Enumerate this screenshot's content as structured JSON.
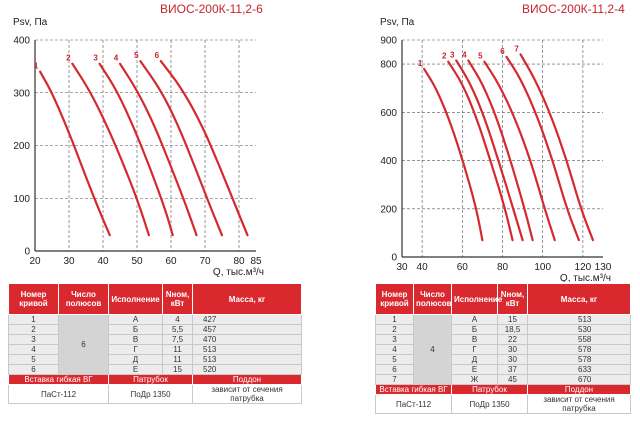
{
  "panels": [
    {
      "title": "ВИОС-200К-11,2-6",
      "chart_data": {
        "type": "line",
        "ylabel": "Psv, Па",
        "xlabel": "Q, тыс.м³/ч",
        "xlim": [
          20,
          85
        ],
        "ylim": [
          0,
          400
        ],
        "x_ticks": [
          20,
          30,
          40,
          50,
          60,
          70,
          80,
          85
        ],
        "y_ticks": [
          0,
          100,
          200,
          300,
          400
        ],
        "grid": true,
        "series": [
          {
            "name": "1",
            "x": [
              21.5,
              25,
              30,
              35,
              39,
              42
            ],
            "y": [
              340,
              300,
              225,
              140,
              75,
              30
            ]
          },
          {
            "name": "2",
            "x": [
              31,
              36,
              41,
              46,
              50.5,
              53.5
            ],
            "y": [
              355,
              305,
              240,
              165,
              90,
              30
            ]
          },
          {
            "name": "3",
            "x": [
              39,
              44,
              49,
              54,
              58.5,
              60.5
            ],
            "y": [
              355,
              305,
              235,
              155,
              75,
              30
            ]
          },
          {
            "name": "4",
            "x": [
              45,
              50,
              55,
              60,
              64.5,
              67.5
            ],
            "y": [
              355,
              305,
              240,
              160,
              85,
              30
            ]
          },
          {
            "name": "5",
            "x": [
              51,
              57,
              62,
              67,
              71.5,
              75
            ],
            "y": [
              360,
              305,
              240,
              160,
              85,
              30
            ]
          },
          {
            "name": "6",
            "x": [
              57,
              63,
              69,
              74,
              79,
              82.5
            ],
            "y": [
              360,
              310,
              240,
              165,
              85,
              30
            ]
          }
        ]
      },
      "table": {
        "headers": [
          "Номер кривой",
          "Число полюсов",
          "Исполнение",
          "Nном, кВт",
          "Масса, кг"
        ],
        "poles": "6",
        "rows": [
          {
            "num": "1",
            "exec": "А",
            "power": "4",
            "mass": "427"
          },
          {
            "num": "2",
            "exec": "Б",
            "power": "5,5",
            "mass": "457"
          },
          {
            "num": "3",
            "exec": "В",
            "power": "7,5",
            "mass": "470"
          },
          {
            "num": "4",
            "exec": "Г",
            "power": "11",
            "mass": "513"
          },
          {
            "num": "5",
            "exec": "Д",
            "power": "11",
            "mass": "513"
          },
          {
            "num": "6",
            "exec": "Е",
            "power": "15",
            "mass": "520"
          }
        ],
        "footer_headers": [
          "Вставка гибкая ВГ",
          "Патрубок",
          "Поддон"
        ],
        "footer_values": [
          "ПаСт-112",
          "ПоДр 1350",
          "зависит от сечения патрубка"
        ]
      }
    },
    {
      "title": "ВИОС-200К-11,2-4",
      "chart_data": {
        "type": "line",
        "ylabel": "Psv, Па",
        "xlabel": "Q, тыс.м³/ч",
        "xlim": [
          30,
          130
        ],
        "ylim": [
          0,
          900
        ],
        "x_ticks": [
          30,
          40,
          60,
          80,
          100,
          120,
          130
        ],
        "y_ticks": [
          0,
          200,
          400,
          600,
          800,
          900
        ],
        "grid": true,
        "series": [
          {
            "name": "1",
            "x": [
              41,
              47,
              54,
              61,
              67,
              70
            ],
            "y": [
              780,
              700,
              560,
              380,
              200,
              70
            ]
          },
          {
            "name": "2",
            "x": [
              53,
              60,
              67,
              74,
              81,
              85
            ],
            "y": [
              810,
              720,
              580,
              400,
              210,
              70
            ]
          },
          {
            "name": "3",
            "x": [
              57,
              64,
              71,
              78,
              85,
              90
            ],
            "y": [
              815,
              720,
              580,
              400,
              210,
              70
            ]
          },
          {
            "name": "4",
            "x": [
              63,
              70,
              77,
              84,
              91,
              95
            ],
            "y": [
              815,
              720,
              580,
              400,
              200,
              70
            ]
          },
          {
            "name": "5",
            "x": [
              71,
              78,
              86,
              94,
              101,
              106
            ],
            "y": [
              810,
              720,
              580,
              400,
              200,
              70
            ]
          },
          {
            "name": "6",
            "x": [
              82,
              89,
              97,
              105,
              112,
              118
            ],
            "y": [
              830,
              740,
              590,
              400,
              200,
              70
            ]
          },
          {
            "name": "7",
            "x": [
              89,
              96,
              104,
              112,
              119,
              125
            ],
            "y": [
              840,
              740,
              590,
              400,
              200,
              70
            ]
          }
        ]
      },
      "table": {
        "headers": [
          "Номер кривой",
          "Число полюсов",
          "Исполнение",
          "Nном, кВт",
          "Масса, кг"
        ],
        "poles": "4",
        "rows": [
          {
            "num": "1",
            "exec": "А",
            "power": "15",
            "mass": "513"
          },
          {
            "num": "2",
            "exec": "Б",
            "power": "18,5",
            "mass": "530"
          },
          {
            "num": "3",
            "exec": "В",
            "power": "22",
            "mass": "558"
          },
          {
            "num": "4",
            "exec": "Г",
            "power": "30",
            "mass": "578"
          },
          {
            "num": "5",
            "exec": "Д",
            "power": "30",
            "mass": "578"
          },
          {
            "num": "6",
            "exec": "Е",
            "power": "37",
            "mass": "633"
          },
          {
            "num": "7",
            "exec": "Ж",
            "power": "45",
            "mass": "670"
          }
        ],
        "footer_headers": [
          "Вставка гибкая ВГ",
          "Патрубок",
          "Поддон"
        ],
        "footer_values": [
          "ПаСт-112",
          "ПоДр 1350",
          "зависит от сечения патрубка"
        ]
      }
    }
  ],
  "colors": {
    "curve": "#d42a2f",
    "header": "#d9292f",
    "grid": "#555555"
  }
}
